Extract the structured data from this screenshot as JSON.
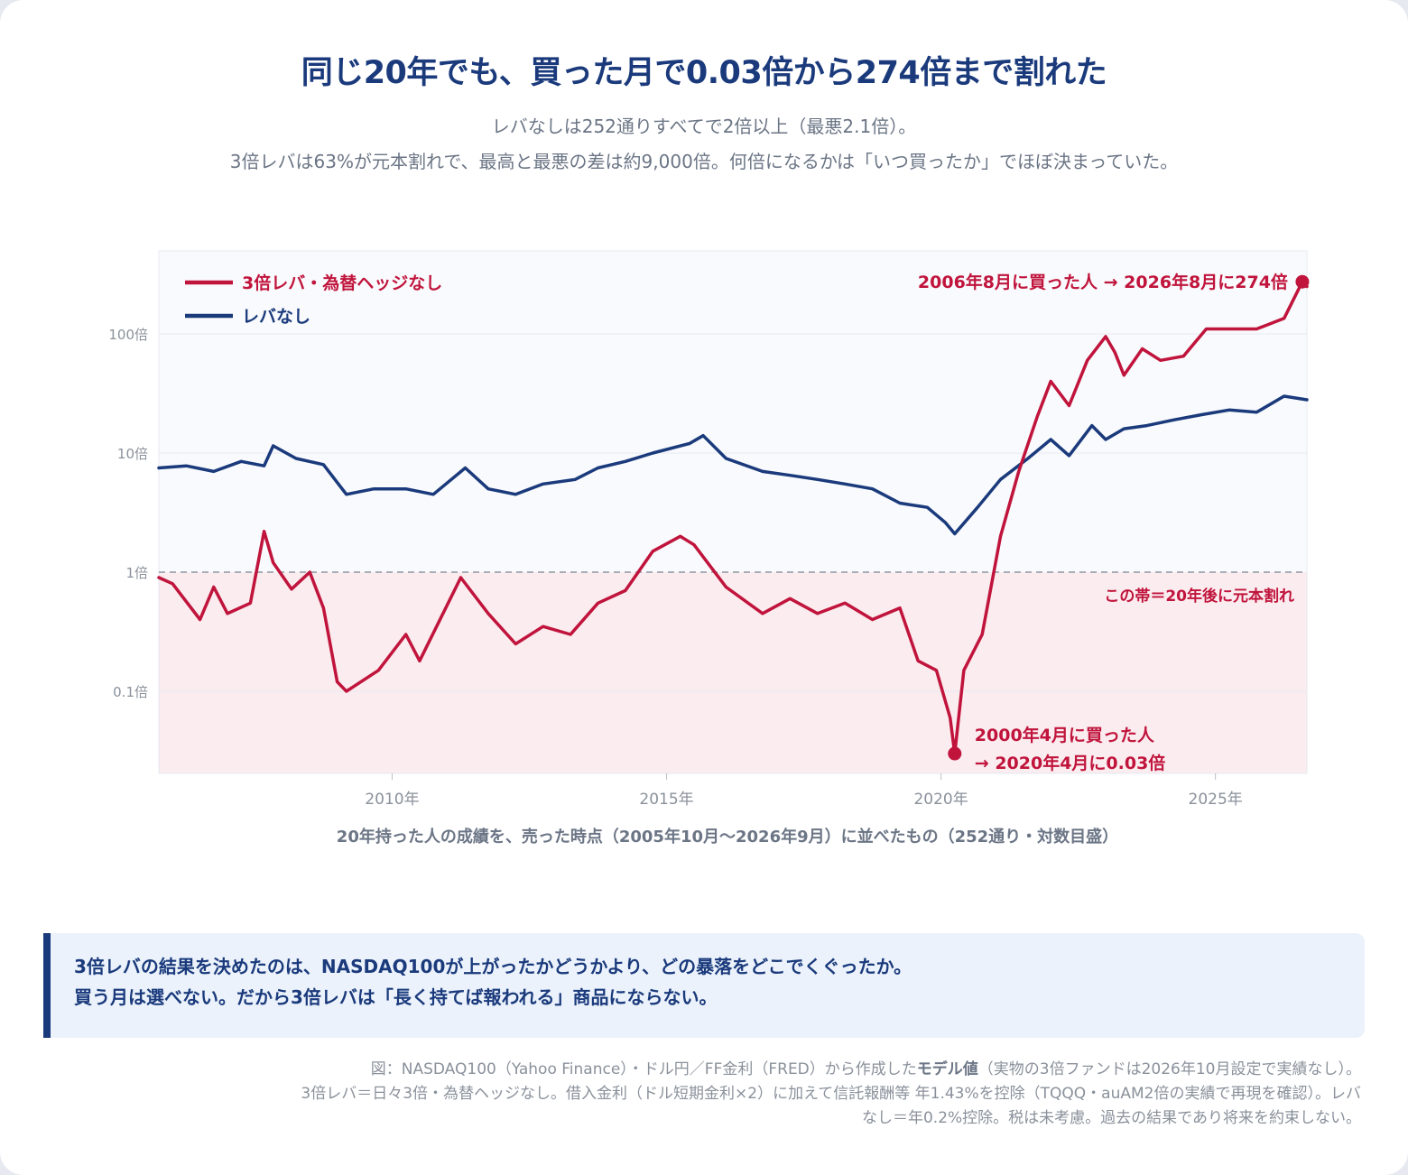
{
  "title": "同じ20年でも、買った月で0.03倍から274倍まで割れた",
  "subtitle_1": "レバなしは252通りすべてで2倍以上（最悪2.1倍）。",
  "subtitle_2": "3倍レバは63%が元本割れで、最高と最悪の差は約9,000倍。何倍になるかは「いつ買ったか」でほぼ決まっていた。",
  "colors": {
    "lev3": "#c0143c",
    "nolev": "#1a3a7c",
    "loss_band": "#fbecef",
    "plot_bg": "#f9fafd"
  },
  "chart_data": {
    "type": "line",
    "y_scale": "log",
    "ylim": [
      0.02,
      500
    ],
    "xlim": [
      "2005-10",
      "2026-09"
    ],
    "y_ticks": [
      {
        "value": 100,
        "label": "100倍"
      },
      {
        "value": 10,
        "label": "10倍"
      },
      {
        "value": 1,
        "label": "1倍"
      },
      {
        "value": 0.1,
        "label": "0.1倍"
      }
    ],
    "x_ticks": [
      {
        "value": "2010-01",
        "label": "2010年"
      },
      {
        "value": "2015-01",
        "label": "2015年"
      },
      {
        "value": "2020-01",
        "label": "2020年"
      },
      {
        "value": "2025-01",
        "label": "2025年"
      }
    ],
    "xlabel": "20年持った人の成績を、売った時点（2005年10月〜2026年9月）に並べたもの（252通り・対数目盛）",
    "reference_line": {
      "value": 1,
      "style": "dashed"
    },
    "legend_position": "top-left",
    "series": [
      {
        "name": "3倍レバ・為替ヘッジなし",
        "x": [
          "2005-10",
          "2006-01",
          "2006-07",
          "2006-10",
          "2007-01",
          "2007-06",
          "2007-09",
          "2007-11",
          "2008-03",
          "2008-07",
          "2008-10",
          "2009-01",
          "2009-03",
          "2009-10",
          "2010-04",
          "2010-07",
          "2011-04",
          "2011-10",
          "2012-04",
          "2012-10",
          "2013-04",
          "2013-10",
          "2014-04",
          "2014-10",
          "2015-04",
          "2015-07",
          "2016-02",
          "2016-10",
          "2017-04",
          "2017-10",
          "2018-04",
          "2018-10",
          "2019-04",
          "2019-08",
          "2019-12",
          "2020-03",
          "2020-04",
          "2020-06",
          "2020-10",
          "2021-02",
          "2021-06",
          "2021-10",
          "2022-01",
          "2022-05",
          "2022-09",
          "2023-01",
          "2023-03",
          "2023-05",
          "2023-09",
          "2024-01",
          "2024-06",
          "2024-11",
          "2025-04",
          "2025-10",
          "2026-04",
          "2026-08",
          "2026-09"
        ],
        "y": [
          0.9,
          0.8,
          0.4,
          0.75,
          0.45,
          0.55,
          2.2,
          1.2,
          0.72,
          1.0,
          0.5,
          0.12,
          0.1,
          0.15,
          0.3,
          0.18,
          0.9,
          0.45,
          0.25,
          0.35,
          0.3,
          0.55,
          0.7,
          1.5,
          2.0,
          1.7,
          0.75,
          0.45,
          0.6,
          0.45,
          0.55,
          0.4,
          0.5,
          0.18,
          0.15,
          0.06,
          0.03,
          0.15,
          0.3,
          2.0,
          7.0,
          20.0,
          40.0,
          25.0,
          60.0,
          95.0,
          70.0,
          45.0,
          75.0,
          60.0,
          65.0,
          110.0,
          110.0,
          110.0,
          135.0,
          274.0,
          250.0
        ]
      },
      {
        "name": "レバなし",
        "x": [
          "2005-10",
          "2006-04",
          "2006-10",
          "2007-04",
          "2007-09",
          "2007-11",
          "2008-04",
          "2008-10",
          "2009-03",
          "2009-09",
          "2010-04",
          "2010-10",
          "2011-05",
          "2011-10",
          "2012-04",
          "2012-10",
          "2013-05",
          "2013-10",
          "2014-04",
          "2014-10",
          "2015-06",
          "2015-09",
          "2016-02",
          "2016-10",
          "2017-04",
          "2017-10",
          "2018-04",
          "2018-10",
          "2019-04",
          "2019-10",
          "2020-02",
          "2020-04",
          "2020-09",
          "2021-02",
          "2021-08",
          "2022-01",
          "2022-05",
          "2022-10",
          "2023-01",
          "2023-05",
          "2023-10",
          "2024-04",
          "2024-10",
          "2025-04",
          "2025-10",
          "2026-04",
          "2026-09"
        ],
        "y": [
          7.5,
          7.8,
          7.0,
          8.5,
          7.8,
          11.5,
          9.0,
          8.0,
          4.5,
          5.0,
          5.0,
          4.5,
          7.5,
          5.0,
          4.5,
          5.5,
          6.0,
          7.5,
          8.5,
          10.0,
          12.0,
          14.0,
          9.0,
          7.0,
          6.5,
          6.0,
          5.5,
          5.0,
          3.8,
          3.5,
          2.6,
          2.1,
          3.5,
          6.0,
          9.0,
          13.0,
          9.5,
          17.0,
          13.0,
          16.0,
          17.0,
          19.0,
          21.0,
          23.0,
          22.0,
          30.0,
          28.0
        ]
      }
    ],
    "annotations": [
      {
        "text": "2006年8月に買った人 → 2026年8月に274倍",
        "x": "2026-08",
        "y": 274
      },
      {
        "text_1": "2000年4月に買った人",
        "text_2": "→ 2020年4月に0.03倍",
        "x": "2020-04",
        "y": 0.03
      },
      {
        "text": "この帯＝20年後に元本割れ"
      }
    ]
  },
  "note": {
    "line_1": "3倍レバの結果を決めたのは、NASDAQ100が上がったかどうかより、どの暴落をどこでくぐったか。",
    "line_2": "買う月は選べない。だから3倍レバは「長く持てば報われる」商品にならない。"
  },
  "source": {
    "line_1a": "図：NASDAQ100（Yahoo Finance）・ドル円／FF金利（FRED）から作成した",
    "line_1b": "モデル値",
    "line_1c": "（実物の3倍ファンドは2026年10月設定で実績なし）。",
    "line_2": "3倍レバ＝日々3倍・為替ヘッジなし。借入金利（ドル短期金利×2）に加えて信託報酬等 年1.43%を控除（TQQQ・auAM2倍の実績で再現を確認）。レバ",
    "line_3": "なし＝年0.2%控除。税は未考慮。過去の結果であり将来を約束しない。"
  }
}
